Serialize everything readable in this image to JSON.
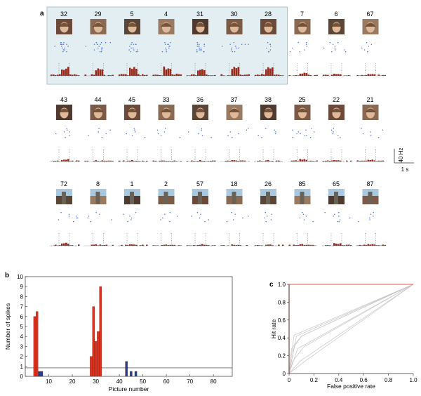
{
  "panel_labels": {
    "a": "a",
    "b": "b",
    "c": "c"
  },
  "colors": {
    "highlight_bg": "#e3eef3",
    "highlight_border": "#9ab8c8",
    "spike_dot": "#4a6fd0",
    "response_bar": "#9a2b1c",
    "bar_red": "#e0301e",
    "bar_blue": "#23408f",
    "roc_red": "#e87a6a",
    "roc_grey": "#c6c6c6"
  },
  "scale_bar": {
    "y_label": "40 Hz",
    "x_label": "1 s"
  },
  "rasters": {
    "rows": [
      {
        "highlighted_count": 7,
        "cells": [
          {
            "number": "32",
            "image": "celebrity-face-photo",
            "strength": 0.9
          },
          {
            "number": "29",
            "image": "celebrity-face-photo",
            "strength": 0.85
          },
          {
            "number": "5",
            "image": "celebrity-face-photo",
            "strength": 0.8
          },
          {
            "number": "4",
            "image": "celebrity-face-photo",
            "strength": 0.95
          },
          {
            "number": "31",
            "image": "celebrity-face-photo",
            "strength": 0.75
          },
          {
            "number": "30",
            "image": "celebrity-face-photo",
            "strength": 0.85
          },
          {
            "number": "28",
            "image": "celebrity-face-photo",
            "strength": 0.8
          },
          {
            "number": "7",
            "image": "celebrity-face-photo",
            "strength": 0.25
          },
          {
            "number": "6",
            "image": "celebrity-face-photo",
            "strength": 0.2
          },
          {
            "number": "67",
            "image": "celebrity-face-photo",
            "strength": 0.1
          }
        ]
      },
      {
        "highlighted_count": 0,
        "cells": [
          {
            "number": "43",
            "image": "celebrity-face-photo",
            "strength": 0.2
          },
          {
            "number": "44",
            "image": "celebrity-face-photo",
            "strength": 0.05
          },
          {
            "number": "45",
            "image": "celebrity-face-photo",
            "strength": 0.05
          },
          {
            "number": "33",
            "image": "celebrity-face-photo",
            "strength": 0.05
          },
          {
            "number": "36",
            "image": "celebrity-face-photo",
            "strength": 0.05
          },
          {
            "number": "37",
            "image": "celebrity-face-photo",
            "strength": 0.05
          },
          {
            "number": "38",
            "image": "celebrity-face-photo",
            "strength": 0.05
          },
          {
            "number": "25",
            "image": "celebrity-face-photo",
            "strength": 0.2
          },
          {
            "number": "22",
            "image": "celebrity-face-photo",
            "strength": 0.05
          },
          {
            "number": "21",
            "image": "celebrity-face-photo",
            "strength": 0.1
          }
        ]
      },
      {
        "highlighted_count": 0,
        "cells": [
          {
            "number": "72",
            "image": "animal-photo",
            "strength": 0.25
          },
          {
            "number": "8",
            "image": "spider-photo",
            "strength": 0.05
          },
          {
            "number": "1",
            "image": "landscape-photo",
            "strength": 0.1
          },
          {
            "number": "2",
            "image": "landscape-photo",
            "strength": 0.05
          },
          {
            "number": "57",
            "image": "building-photo",
            "strength": 0.05
          },
          {
            "number": "18",
            "image": "eiffel-tower-photo",
            "strength": 0.05
          },
          {
            "number": "26",
            "image": "bridge-photo",
            "strength": 0.05
          },
          {
            "number": "85",
            "image": "opera-house-photo",
            "strength": 0.1
          },
          {
            "number": "65",
            "image": "leaning-tower-photo",
            "strength": 0.2
          },
          {
            "number": "87",
            "image": "skyscraper-photo",
            "strength": 0.1
          }
        ]
      }
    ]
  },
  "chart_data": [
    {
      "type": "bar",
      "xlabel": "Picture number",
      "ylabel": "Number of spikes",
      "xlim": [
        0,
        88
      ],
      "ylim": [
        0,
        10
      ],
      "xticks": [
        10,
        20,
        30,
        40,
        50,
        60,
        70,
        80
      ],
      "yticks": [
        0,
        1,
        2,
        3,
        4,
        5,
        6,
        7,
        8,
        9,
        10
      ],
      "threshold": 0.85,
      "series": [
        {
          "color": "red",
          "x": [
            4,
            5,
            28,
            29,
            30,
            31,
            32
          ],
          "values": [
            6.0,
            6.5,
            2.0,
            7.0,
            3.5,
            4.5,
            9.0
          ]
        },
        {
          "color": "blue",
          "x": [
            6,
            7,
            43,
            45,
            47
          ],
          "values": [
            0.5,
            0.5,
            1.5,
            0.5,
            0.5
          ]
        }
      ]
    },
    {
      "type": "line",
      "xlabel": "False positive rate",
      "ylabel": "Hit rate",
      "xlim": [
        0,
        1
      ],
      "ylim": [
        0,
        1
      ],
      "xticks": [
        0,
        0.2,
        0.4,
        0.6,
        0.8,
        1.0
      ],
      "yticks": [
        0,
        0.2,
        0.4,
        0.6,
        0.8,
        1.0
      ],
      "series": [
        {
          "color": "red",
          "x": [
            0,
            0,
            1
          ],
          "y": [
            0,
            1,
            1
          ]
        },
        {
          "color": "grey",
          "x": [
            0,
            0.04,
            1
          ],
          "y": [
            0,
            0.43,
            1
          ]
        },
        {
          "color": "grey",
          "x": [
            0,
            0.06,
            1
          ],
          "y": [
            0,
            0.42,
            1
          ]
        },
        {
          "color": "grey",
          "x": [
            0,
            0.04,
            0.1,
            1
          ],
          "y": [
            0,
            0.3,
            0.42,
            1
          ]
        },
        {
          "color": "grey",
          "x": [
            0,
            0.07,
            1
          ],
          "y": [
            0,
            0.28,
            1
          ]
        },
        {
          "color": "grey",
          "x": [
            0,
            0.03,
            0.12,
            1
          ],
          "y": [
            0,
            0.14,
            0.3,
            1
          ]
        },
        {
          "color": "grey",
          "x": [
            0,
            0.09,
            1
          ],
          "y": [
            0,
            0.14,
            1
          ]
        },
        {
          "color": "grey",
          "x": [
            0,
            0.13,
            1
          ],
          "y": [
            0,
            0.14,
            1
          ]
        },
        {
          "color": "grey",
          "x": [
            0,
            0.02,
            0.1,
            1
          ],
          "y": [
            0,
            0.28,
            0.42,
            1
          ]
        }
      ]
    }
  ]
}
